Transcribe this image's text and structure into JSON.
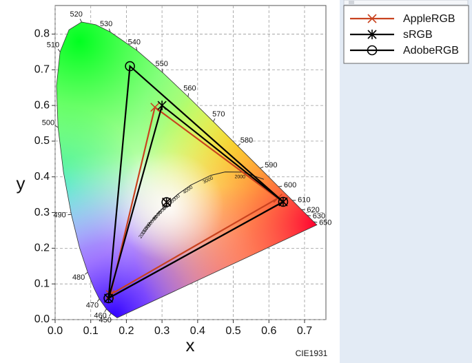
{
  "chart_data": {
    "type": "chromaticity",
    "footer": "CIE1931",
    "x_label": "x",
    "y_label": "y",
    "xlim": [
      0,
      0.76
    ],
    "ylim": [
      0,
      0.88
    ],
    "xticks": [
      {
        "value": 0,
        "label": "0.0"
      },
      {
        "value": 0.1,
        "label": "0.1"
      },
      {
        "value": 0.2,
        "label": "0.2"
      },
      {
        "value": 0.3,
        "label": "0.3"
      },
      {
        "value": 0.4,
        "label": "0.4"
      },
      {
        "value": 0.5,
        "label": "0.5"
      },
      {
        "value": 0.6,
        "label": "0.6"
      },
      {
        "value": 0.7,
        "label": "0.7"
      }
    ],
    "yticks": [
      {
        "value": 0,
        "label": "0.0"
      },
      {
        "value": 0.1,
        "label": "0.1"
      },
      {
        "value": 0.2,
        "label": "0.2"
      },
      {
        "value": 0.3,
        "label": "0.3"
      },
      {
        "value": 0.4,
        "label": "0.4"
      },
      {
        "value": 0.5,
        "label": "0.5"
      },
      {
        "value": 0.6,
        "label": "0.6"
      },
      {
        "value": 0.7,
        "label": "0.7"
      },
      {
        "value": 0.8,
        "label": "0.8"
      }
    ],
    "grid": true,
    "spectral_locus": {
      "x": [
        0.1741,
        0.1566,
        0.144,
        0.1241,
        0.1096,
        0.0913,
        0.0687,
        0.0454,
        0.0235,
        0.0082,
        0.0039,
        0.0139,
        0.0389,
        0.0743,
        0.1142,
        0.1547,
        0.2296,
        0.3016,
        0.3731,
        0.4441,
        0.5125,
        0.5752,
        0.627,
        0.6658,
        0.6915,
        0.7079,
        0.726,
        0.7347
      ],
      "y": [
        0.005,
        0.0177,
        0.0297,
        0.0578,
        0.0868,
        0.1327,
        0.2007,
        0.295,
        0.4127,
        0.5384,
        0.6548,
        0.7502,
        0.812,
        0.8338,
        0.8262,
        0.8059,
        0.7543,
        0.6923,
        0.6245,
        0.5547,
        0.4866,
        0.4242,
        0.3725,
        0.334,
        0.3083,
        0.292,
        0.274,
        0.2653
      ],
      "labels": [
        null,
        "450",
        "460",
        "470",
        null,
        "480",
        null,
        "490",
        null,
        "500",
        null,
        "510",
        null,
        "520",
        null,
        "530",
        "540",
        "550",
        "560",
        "570",
        "580",
        "590",
        "600",
        "610",
        "620",
        "630",
        "650",
        null
      ]
    },
    "planckian_locus": {
      "x": [
        0.5857,
        0.5266,
        0.477,
        0.4369,
        0.3805,
        0.3451,
        0.3221,
        0.3064,
        0.2952,
        0.2807,
        0.2637,
        0.2565
      ],
      "y": [
        0.3931,
        0.4133,
        0.4137,
        0.4041,
        0.3768,
        0.3516,
        0.3318,
        0.3166,
        0.3048,
        0.2884,
        0.268,
        0.2577
      ],
      "labels": [
        null,
        "2000",
        null,
        "3000",
        "4000",
        "5000",
        "6000",
        "7000",
        "8000",
        "10000",
        "15000",
        "20000"
      ]
    },
    "white_point": {
      "x": 0.3127,
      "y": 0.329
    },
    "series": [
      {
        "name": "AppleRGB",
        "color": "#c8421e",
        "marker": "x",
        "x": [
          0.625,
          0.28,
          0.155
        ],
        "y": [
          0.34,
          0.595,
          0.07
        ]
      },
      {
        "name": "sRGB",
        "color": "#000000",
        "marker": "star",
        "x": [
          0.64,
          0.3,
          0.15
        ],
        "y": [
          0.33,
          0.6,
          0.06
        ]
      },
      {
        "name": "AdobeRGB",
        "color": "#000000",
        "marker": "circle",
        "x": [
          0.64,
          0.21,
          0.15
        ],
        "y": [
          0.33,
          0.71,
          0.06
        ]
      }
    ]
  }
}
